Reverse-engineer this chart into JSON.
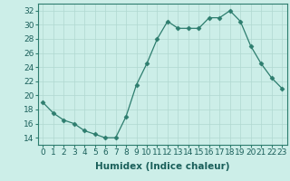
{
  "x": [
    0,
    1,
    2,
    3,
    4,
    5,
    6,
    7,
    8,
    9,
    10,
    11,
    12,
    13,
    14,
    15,
    16,
    17,
    18,
    19,
    20,
    21,
    22,
    23
  ],
  "y": [
    19,
    17.5,
    16.5,
    16,
    15,
    14.5,
    14,
    14,
    17,
    21.5,
    24.5,
    28,
    30.5,
    29.5,
    29.5,
    29.5,
    31,
    31,
    32,
    30.5,
    27,
    24.5,
    22.5,
    21
  ],
  "xlabel": "Humidex (Indice chaleur)",
  "ylim": [
    13,
    33
  ],
  "xlim": [
    -0.5,
    23.5
  ],
  "yticks": [
    14,
    16,
    18,
    20,
    22,
    24,
    26,
    28,
    30,
    32
  ],
  "xticks": [
    0,
    1,
    2,
    3,
    4,
    5,
    6,
    7,
    8,
    9,
    10,
    11,
    12,
    13,
    14,
    15,
    16,
    17,
    18,
    19,
    20,
    21,
    22,
    23
  ],
  "line_color": "#2d7d6e",
  "marker": "D",
  "marker_size": 2.5,
  "bg_color": "#cceee8",
  "grid_color": "#b0d8d0",
  "xlabel_fontsize": 7.5,
  "tick_fontsize": 6.5
}
